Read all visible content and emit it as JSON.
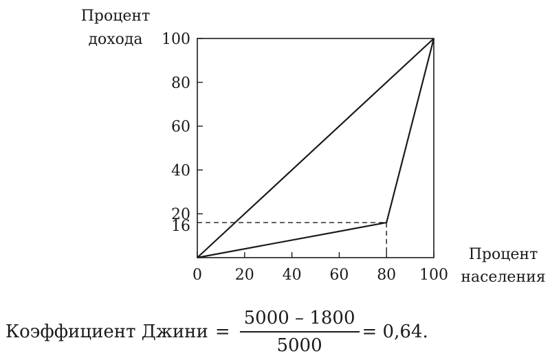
{
  "chart_data": {
    "type": "line",
    "ylabel_lines": [
      "Процент",
      "дохода"
    ],
    "xlabel_lines": [
      "Процент",
      "населения"
    ],
    "xlim": [
      0,
      100
    ],
    "ylim": [
      0,
      100
    ],
    "x_ticks": [
      "0",
      "20",
      "40",
      "60",
      "80",
      "100"
    ],
    "y_ticks": [
      "20",
      "40",
      "60",
      "80",
      "100"
    ],
    "y_ticks_values": [
      20,
      40,
      60,
      80,
      100
    ],
    "extra_y_tick": "16",
    "extra_y_tick_value": 16,
    "series": [
      {
        "x": [
          0,
          100
        ],
        "y": [
          0,
          100
        ]
      },
      {
        "x": [
          0,
          80,
          100
        ],
        "y": [
          0,
          16,
          100
        ]
      }
    ],
    "reference_point": {
      "x": 80,
      "y": 16
    },
    "grid": false
  },
  "formula": {
    "label": "Коэффициент Джини",
    "equals": "=",
    "numerator": "5000 – 1800",
    "denominator": "5000",
    "result": "= 0,64."
  }
}
